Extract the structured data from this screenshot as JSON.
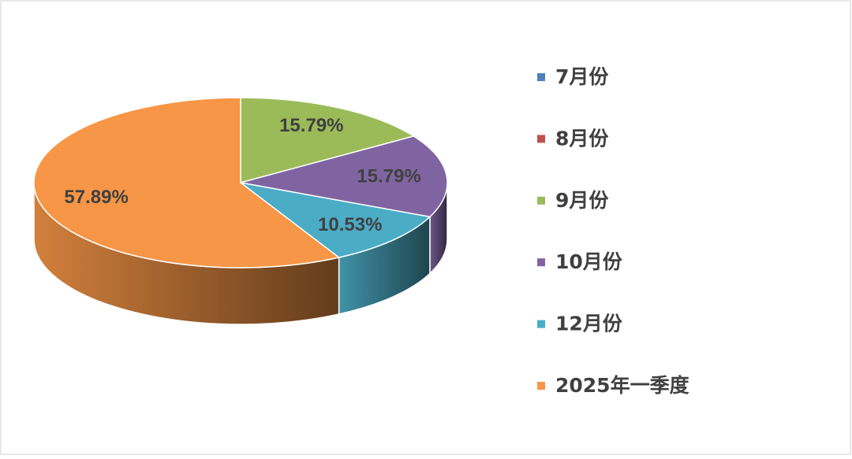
{
  "chart_data": {
    "type": "pie",
    "categories": [
      "7月份",
      "8月份",
      "9月份",
      "10月份",
      "12月份",
      "2025年一季度"
    ],
    "values": [
      0,
      0,
      15.79,
      15.79,
      10.53,
      57.89
    ],
    "value_labels": [
      null,
      null,
      "15.79%",
      "15.79%",
      "10.53%",
      "57.89%"
    ],
    "colors": [
      "#4f81bd",
      "#c0504d",
      "#9bbb59",
      "#8064a2",
      "#4bacc6",
      "#f79646"
    ],
    "legend": "right"
  }
}
